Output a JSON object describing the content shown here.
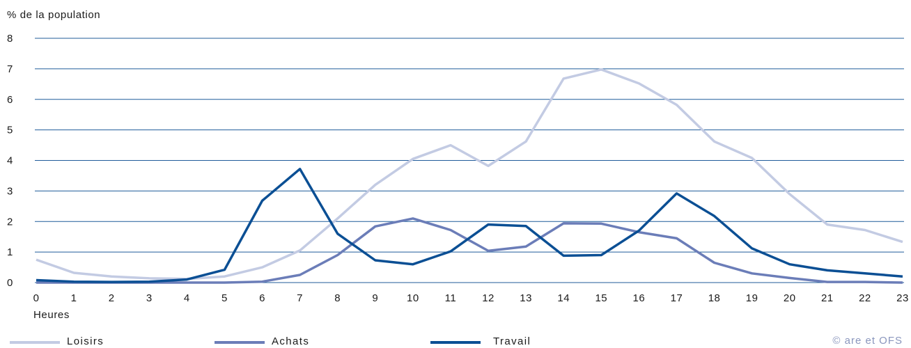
{
  "chart_data": {
    "type": "line",
    "ylabel": "% de la population",
    "xlabel": "Heures",
    "ylim": [
      0,
      8
    ],
    "yticks": [
      0,
      1,
      2,
      3,
      4,
      5,
      6,
      7,
      8
    ],
    "x": [
      0,
      1,
      2,
      3,
      4,
      5,
      6,
      7,
      8,
      9,
      10,
      11,
      12,
      13,
      14,
      15,
      16,
      17,
      18,
      19,
      20,
      21,
      22,
      23
    ],
    "grid": true,
    "legend_position": "bottom",
    "series": [
      {
        "name": "Loisirs",
        "color": "#c3cbe3",
        "values": [
          0.75,
          0.32,
          0.2,
          0.14,
          0.12,
          0.2,
          0.5,
          1.05,
          2.1,
          3.2,
          4.05,
          4.5,
          3.82,
          4.62,
          6.68,
          6.98,
          6.52,
          5.82,
          4.62,
          4.08,
          2.9,
          1.9,
          1.72,
          1.33
        ]
      },
      {
        "name": "Achats",
        "color": "#6b7db8",
        "values": [
          0.0,
          0.0,
          0.0,
          0.0,
          0.0,
          0.0,
          0.03,
          0.25,
          0.9,
          1.84,
          2.1,
          1.72,
          1.04,
          1.18,
          1.94,
          1.93,
          1.65,
          1.45,
          0.65,
          0.3,
          0.15,
          0.02,
          0.02,
          0.0
        ]
      },
      {
        "name": "Travail",
        "color": "#0b4f94",
        "values": [
          0.08,
          0.03,
          0.02,
          0.03,
          0.1,
          0.42,
          2.68,
          3.72,
          1.6,
          0.73,
          0.6,
          1.02,
          1.9,
          1.85,
          0.88,
          0.9,
          1.7,
          2.92,
          2.18,
          1.12,
          0.6,
          0.4,
          0.3,
          0.2
        ]
      }
    ]
  },
  "credit": "© are et OFS"
}
